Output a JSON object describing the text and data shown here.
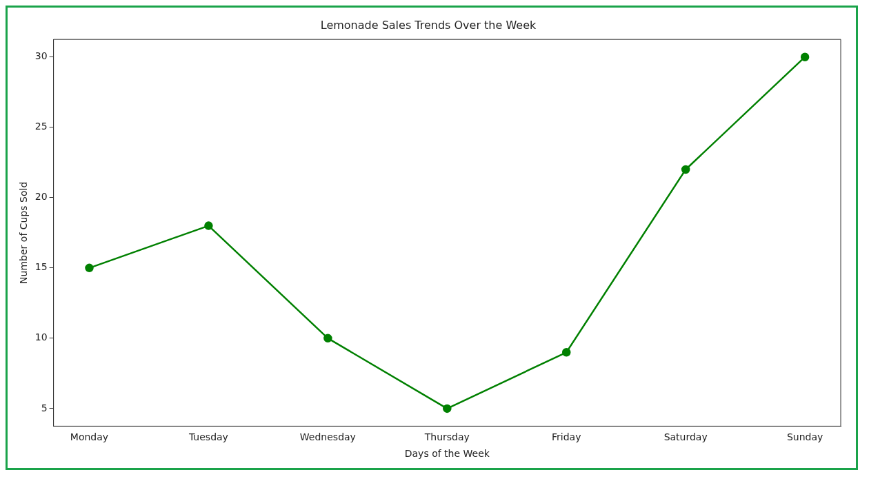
{
  "chart_data": {
    "type": "line",
    "title": "Lemonade Sales Trends Over the Week",
    "xlabel": "Days of the Week",
    "ylabel": "Number of Cups Sold",
    "categories": [
      "Monday",
      "Tuesday",
      "Wednesday",
      "Thursday",
      "Friday",
      "Saturday",
      "Sunday"
    ],
    "series": [
      {
        "color": "#008000",
        "values": [
          15,
          18,
          10,
          5,
          9,
          22,
          30
        ]
      }
    ],
    "ylim": [
      3.75,
      31.25
    ],
    "yticks": [
      5,
      10,
      15,
      20,
      25,
      30
    ],
    "grid": false,
    "legend": false,
    "marker": "circle",
    "line_style": "solid"
  }
}
